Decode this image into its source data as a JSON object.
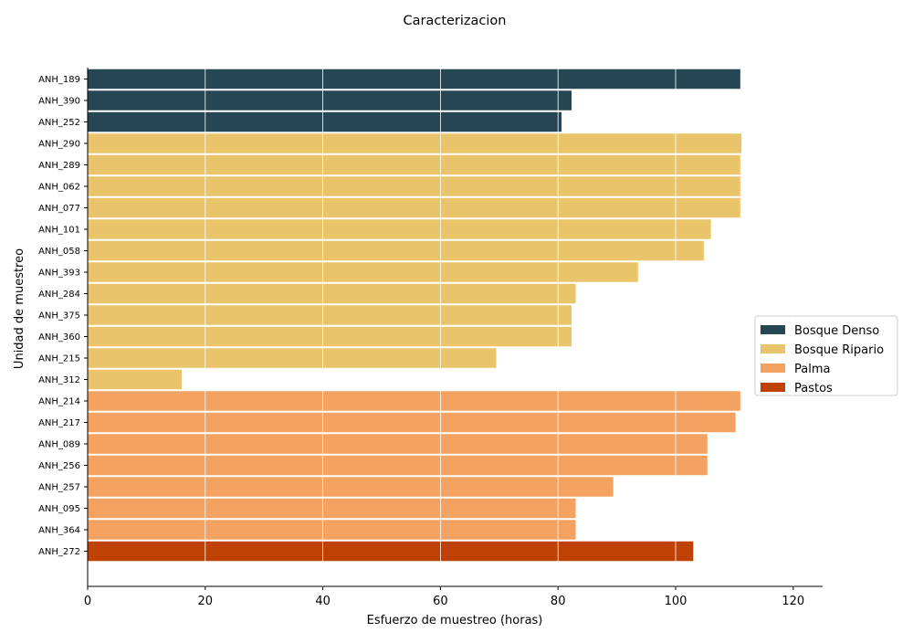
{
  "chart_data": {
    "type": "bar",
    "orientation": "horizontal",
    "title": "Caracterizacion",
    "xlabel": "Esfuerzo de muestreo (horas)",
    "ylabel": "Unidad de muestreo",
    "xlim": [
      0,
      125
    ],
    "xticks": [
      0,
      20,
      40,
      60,
      80,
      100,
      120
    ],
    "grid": true,
    "legend_position": "right",
    "categories": [
      "ANH_189",
      "ANH_390",
      "ANH_252",
      "ANH_290",
      "ANH_289",
      "ANH_062",
      "ANH_077",
      "ANH_101",
      "ANH_058",
      "ANH_393",
      "ANH_284",
      "ANH_375",
      "ANH_360",
      "ANH_215",
      "ANH_312",
      "ANH_214",
      "ANH_217",
      "ANH_089",
      "ANH_256",
      "ANH_257",
      "ANH_095",
      "ANH_364",
      "ANH_272"
    ],
    "values": [
      111,
      82.3,
      80.6,
      111.2,
      111,
      111,
      111,
      106,
      104.8,
      93.6,
      83,
      82.3,
      82.3,
      69.5,
      16,
      111,
      110.2,
      105.4,
      105.4,
      89.4,
      83,
      83,
      103
    ],
    "groups": [
      "Bosque Denso",
      "Bosque Denso",
      "Bosque Denso",
      "Bosque Ripario",
      "Bosque Ripario",
      "Bosque Ripario",
      "Bosque Ripario",
      "Bosque Ripario",
      "Bosque Ripario",
      "Bosque Ripario",
      "Bosque Ripario",
      "Bosque Ripario",
      "Bosque Ripario",
      "Bosque Ripario",
      "Bosque Ripario",
      "Palma",
      "Palma",
      "Palma",
      "Palma",
      "Palma",
      "Palma",
      "Palma",
      "Pastos"
    ],
    "legend": [
      {
        "name": "Bosque Denso",
        "color": "#264653"
      },
      {
        "name": "Bosque Ripario",
        "color": "#e9c46a"
      },
      {
        "name": "Palma",
        "color": "#f4a261"
      },
      {
        "name": "Pastos",
        "color": "#bf4104"
      }
    ]
  }
}
